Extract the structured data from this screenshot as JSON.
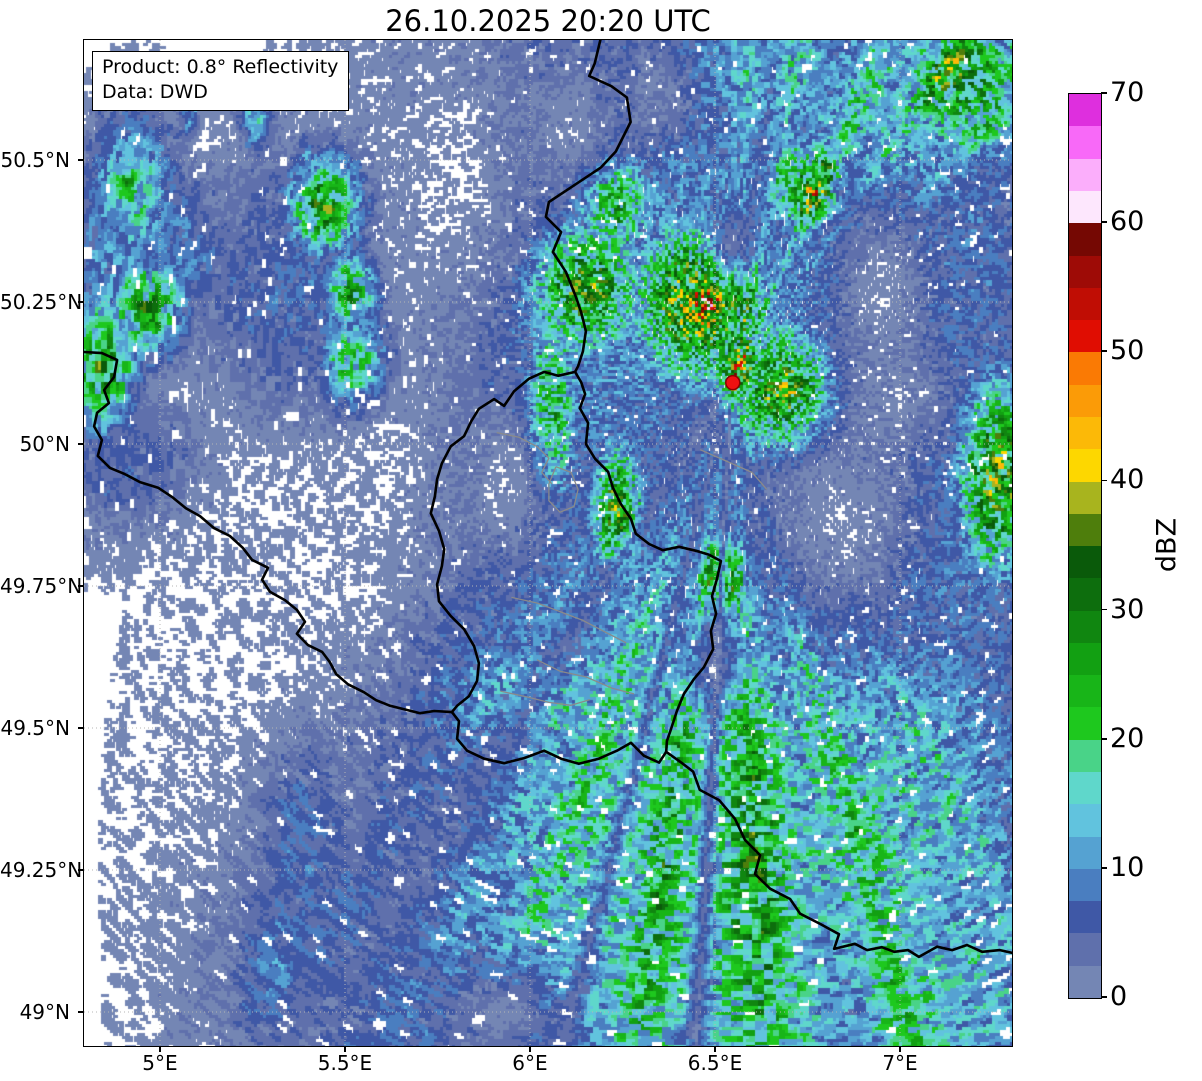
{
  "title": "26.10.2025 20:20 UTC",
  "info_box": {
    "line1": "Product: 0.8° Reflectivity",
    "line2": "Data: DWD"
  },
  "axes": {
    "extent": {
      "lon_min": 4.7946,
      "lon_max": 7.3027,
      "lat_min": 48.9401,
      "lat_max": 50.7113
    },
    "xticks": [
      {
        "value": 5.0,
        "label": "5°E"
      },
      {
        "value": 5.5,
        "label": "5.5°E"
      },
      {
        "value": 6.0,
        "label": "6°E"
      },
      {
        "value": 6.5,
        "label": "6.5°E"
      },
      {
        "value": 7.0,
        "label": "7°E"
      }
    ],
    "yticks": [
      {
        "value": 49.0,
        "label": "49°N"
      },
      {
        "value": 49.25,
        "label": "49.25°N"
      },
      {
        "value": 49.5,
        "label": "49.5°N"
      },
      {
        "value": 49.75,
        "label": "49.75°N"
      },
      {
        "value": 50.0,
        "label": "50°N"
      },
      {
        "value": 50.25,
        "label": "50.25°N"
      },
      {
        "value": 50.5,
        "label": "50.5°N"
      }
    ],
    "grid_color": "#b5b5b5"
  },
  "colorbar": {
    "label": "dBZ",
    "vmin": 0,
    "vmax": 70,
    "step": 2.5,
    "ticks": [
      0,
      10,
      20,
      30,
      40,
      50,
      60,
      70
    ],
    "colors": [
      "#7486b4",
      "#5f70ac",
      "#3f58a6",
      "#4a7ec0",
      "#55a2d2",
      "#61c3de",
      "#5fd7cb",
      "#49d388",
      "#1ec81e",
      "#18b518",
      "#12a012",
      "#108610",
      "#0d6e0d",
      "#0a5a0a",
      "#4e7e0c",
      "#a8b41e",
      "#fdd700",
      "#fcb907",
      "#fb9b07",
      "#fa7a04",
      "#e00d02",
      "#c00d04",
      "#9e0b06",
      "#750803",
      "#fde7fd",
      "#fbaefb",
      "#f869f8",
      "#de2fde"
    ]
  },
  "radar": {
    "site_lon": 6.548,
    "site_lat": 50.108,
    "marker_color": "#ee1111",
    "marker_edge": "#8b0000"
  },
  "chart_data": {
    "type": "heatmap",
    "title": "26.10.2025 20:20 UTC",
    "units": "dBZ",
    "value_range": [
      0,
      70
    ],
    "value_step": 2.5,
    "radar_site": {
      "lon": 6.548,
      "lat": 50.108
    },
    "polar_bins": {
      "range_km": 1.0,
      "azimuth_deg": 1.0
    },
    "precip_blobs": [
      [
        6.35,
        50.48,
        0.4,
        0.3,
        9
      ],
      [
        6.9,
        50.3,
        0.4,
        0.4,
        9
      ],
      [
        6.2,
        50.18,
        0.28,
        0.25,
        9
      ],
      [
        7.05,
        49.85,
        0.3,
        0.28,
        9
      ],
      [
        6.6,
        50.66,
        0.35,
        0.15,
        10
      ],
      [
        6.95,
        50.55,
        0.25,
        0.2,
        12
      ],
      [
        6.15,
        50.28,
        0.11,
        0.09,
        27
      ],
      [
        6.22,
        50.43,
        0.08,
        0.07,
        26
      ],
      [
        6.46,
        50.25,
        0.13,
        0.1,
        31
      ],
      [
        6.48,
        50.245,
        0.055,
        0.045,
        41
      ],
      [
        6.7,
        50.09,
        0.1,
        0.08,
        33
      ],
      [
        6.57,
        50.13,
        0.055,
        0.05,
        29
      ],
      [
        6.76,
        50.45,
        0.07,
        0.06,
        26
      ],
      [
        7.18,
        50.64,
        0.14,
        0.1,
        22
      ],
      [
        7.26,
        49.94,
        0.08,
        0.12,
        30
      ],
      [
        6.06,
        50.06,
        0.05,
        0.12,
        22
      ],
      [
        6.24,
        49.88,
        0.05,
        0.09,
        26
      ],
      [
        6.52,
        49.76,
        0.05,
        0.06,
        26
      ],
      [
        6.0,
        49.82,
        0.33,
        0.28,
        5
      ],
      [
        5.88,
        49.62,
        0.28,
        0.18,
        7
      ],
      [
        6.05,
        49.55,
        0.28,
        0.1,
        13
      ],
      [
        6.45,
        49.28,
        0.55,
        0.5,
        15
      ],
      [
        6.95,
        49.32,
        0.35,
        0.33,
        13
      ],
      [
        5.95,
        49.18,
        0.33,
        0.27,
        10
      ],
      [
        5.6,
        49.05,
        0.28,
        0.22,
        8
      ],
      [
        7.1,
        49.05,
        0.3,
        0.2,
        13
      ],
      [
        4.85,
        50.14,
        0.06,
        0.08,
        25
      ],
      [
        4.88,
        50.3,
        0.1,
        0.14,
        10
      ],
      [
        4.97,
        50.24,
        0.07,
        0.06,
        23
      ],
      [
        4.93,
        50.45,
        0.08,
        0.09,
        15
      ],
      [
        4.92,
        50.465,
        0.025,
        0.025,
        22
      ],
      [
        5.02,
        50.33,
        0.13,
        0.11,
        8
      ],
      [
        5.45,
        50.42,
        0.07,
        0.06,
        25
      ],
      [
        5.52,
        50.27,
        0.05,
        0.05,
        22
      ],
      [
        5.53,
        50.14,
        0.06,
        0.06,
        21
      ],
      [
        5.35,
        50.28,
        0.18,
        0.16,
        6
      ],
      [
        4.92,
        49.96,
        0.14,
        0.09,
        6
      ],
      [
        5.38,
        49.33,
        0.1,
        0.16,
        7
      ],
      [
        5.32,
        49.08,
        0.09,
        0.13,
        8
      ],
      [
        5.26,
        50.57,
        0.03,
        0.04,
        12
      ],
      [
        5.4,
        50.5,
        0.025,
        0.03,
        10
      ],
      [
        5.08,
        50.585,
        0.02,
        0.03,
        12
      ]
    ],
    "dry_holes": [
      [
        6.95,
        50.27,
        0.11,
        0.13,
        0.95
      ],
      [
        6.85,
        49.86,
        0.18,
        0.13,
        0.92
      ],
      [
        6.12,
        50.56,
        0.1,
        0.11,
        0.85
      ],
      [
        5.93,
        49.93,
        0.08,
        0.09,
        0.85
      ],
      [
        5.92,
        49.0,
        0.11,
        0.06,
        0.9
      ],
      [
        6.55,
        50.35,
        0.05,
        0.04,
        0.8
      ],
      [
        6.5,
        49.62,
        0.07,
        0.05,
        0.7
      ],
      [
        5.45,
        49.75,
        0.22,
        0.13,
        0.93
      ],
      [
        5.1,
        49.62,
        0.25,
        0.18,
        0.95
      ],
      [
        5.62,
        49.97,
        0.09,
        0.1,
        0.8
      ],
      [
        5.8,
        50.48,
        0.13,
        0.18,
        0.92
      ],
      [
        6.35,
        50.62,
        0.08,
        0.08,
        0.8
      ],
      [
        7.0,
        50.08,
        0.1,
        0.07,
        0.75
      ]
    ],
    "ray_streaks": [
      [
        177,
        5,
        1.7
      ],
      [
        188,
        3,
        1.5
      ],
      [
        165,
        4,
        1.5
      ],
      [
        200,
        3,
        1.35
      ],
      [
        152,
        3,
        1.25
      ],
      [
        12,
        4,
        1.5
      ],
      [
        24,
        4,
        1.6
      ],
      [
        34,
        3,
        1.4
      ],
      [
        3,
        3,
        1.3
      ],
      [
        45,
        3,
        1.2
      ]
    ],
    "ray_gaps": [
      [
        183,
        1.5,
        0.25
      ],
      [
        194,
        1.5,
        0.4
      ],
      [
        212,
        5,
        0.5
      ]
    ]
  },
  "map_layers": {
    "country_border_color": "#000000",
    "district_border_color": "#8a8a8a",
    "country_borders": [
      [
        [
          6.19,
          50.711
        ],
        [
          6.175,
          50.67
        ],
        [
          6.16,
          50.648
        ],
        [
          6.22,
          50.63
        ],
        [
          6.262,
          50.61
        ],
        [
          6.272,
          50.567
        ],
        [
          6.232,
          50.515
        ],
        [
          6.192,
          50.487
        ],
        [
          6.111,
          50.452
        ],
        [
          6.051,
          50.426
        ],
        [
          6.043,
          50.4
        ],
        [
          6.084,
          50.373
        ],
        [
          6.062,
          50.338
        ],
        [
          6.097,
          50.303
        ],
        [
          6.124,
          50.259
        ],
        [
          6.138,
          50.232
        ],
        [
          6.151,
          50.199
        ],
        [
          6.143,
          50.163
        ],
        [
          6.13,
          50.137
        ],
        [
          6.122,
          50.127
        ]
      ],
      [
        [
          6.122,
          50.127
        ],
        [
          6.076,
          50.12
        ],
        [
          6.038,
          50.127
        ],
        [
          5.997,
          50.115
        ],
        [
          5.957,
          50.093
        ],
        [
          5.93,
          50.067
        ],
        [
          5.903,
          50.079
        ],
        [
          5.862,
          50.062
        ],
        [
          5.841,
          50.04
        ],
        [
          5.822,
          50.014
        ],
        [
          5.786,
          49.996
        ],
        [
          5.762,
          49.966
        ],
        [
          5.749,
          49.938
        ],
        [
          5.743,
          49.908
        ],
        [
          5.732,
          49.878
        ],
        [
          5.754,
          49.847
        ],
        [
          5.768,
          49.815
        ],
        [
          5.762,
          49.785
        ],
        [
          5.749,
          49.753
        ],
        [
          5.754,
          49.723
        ],
        [
          5.786,
          49.697
        ],
        [
          5.822,
          49.674
        ],
        [
          5.849,
          49.644
        ],
        [
          5.862,
          49.614
        ],
        [
          5.857,
          49.583
        ],
        [
          5.835,
          49.556
        ],
        [
          5.803,
          49.539
        ],
        [
          5.789,
          49.528
        ]
      ],
      [
        [
          4.795,
          50.162
        ],
        [
          4.843,
          50.16
        ],
        [
          4.884,
          50.148
        ],
        [
          4.876,
          50.118
        ],
        [
          4.849,
          50.095
        ],
        [
          4.862,
          50.072
        ],
        [
          4.83,
          50.055
        ],
        [
          4.822,
          50.031
        ],
        [
          4.843,
          50.007
        ],
        [
          4.832,
          49.979
        ],
        [
          4.865,
          49.958
        ],
        [
          4.905,
          49.947
        ],
        [
          4.946,
          49.933
        ],
        [
          4.995,
          49.923
        ],
        [
          5.032,
          49.907
        ],
        [
          5.07,
          49.887
        ],
        [
          5.108,
          49.873
        ],
        [
          5.146,
          49.852
        ],
        [
          5.189,
          49.838
        ],
        [
          5.224,
          49.817
        ],
        [
          5.249,
          49.796
        ],
        [
          5.292,
          49.782
        ],
        [
          5.276,
          49.761
        ],
        [
          5.297,
          49.74
        ],
        [
          5.338,
          49.725
        ],
        [
          5.37,
          49.708
        ],
        [
          5.392,
          49.687
        ],
        [
          5.37,
          49.666
        ],
        [
          5.4,
          49.646
        ],
        [
          5.438,
          49.634
        ],
        [
          5.459,
          49.616
        ],
        [
          5.476,
          49.595
        ],
        [
          5.508,
          49.577
        ],
        [
          5.551,
          49.563
        ],
        [
          5.584,
          49.549
        ],
        [
          5.622,
          49.539
        ],
        [
          5.703,
          49.526
        ],
        [
          5.741,
          49.53
        ],
        [
          5.789,
          49.528
        ]
      ],
      [
        [
          5.789,
          49.528
        ],
        [
          5.808,
          49.512
        ],
        [
          5.803,
          49.481
        ],
        [
          5.83,
          49.46
        ],
        [
          5.876,
          49.446
        ],
        [
          5.93,
          49.438
        ],
        [
          5.984,
          49.447
        ],
        [
          6.038,
          49.46
        ],
        [
          6.084,
          49.446
        ],
        [
          6.132,
          49.437
        ],
        [
          6.186,
          49.446
        ],
        [
          6.235,
          49.46
        ],
        [
          6.273,
          49.474
        ],
        [
          6.308,
          49.451
        ],
        [
          6.349,
          49.439
        ],
        [
          6.368,
          49.458
        ]
      ],
      [
        [
          6.122,
          50.127
        ],
        [
          6.138,
          50.109
        ],
        [
          6.149,
          50.088
        ],
        [
          6.135,
          50.063
        ],
        [
          6.157,
          50.037
        ],
        [
          6.151,
          50.0
        ],
        [
          6.176,
          49.974
        ],
        [
          6.211,
          49.951
        ],
        [
          6.224,
          49.923
        ],
        [
          6.246,
          49.894
        ],
        [
          6.273,
          49.868
        ],
        [
          6.286,
          49.842
        ],
        [
          6.322,
          49.824
        ],
        [
          6.359,
          49.813
        ],
        [
          6.403,
          49.819
        ],
        [
          6.449,
          49.812
        ],
        [
          6.484,
          49.805
        ],
        [
          6.516,
          49.794
        ],
        [
          6.505,
          49.762
        ],
        [
          6.492,
          49.732
        ],
        [
          6.503,
          49.701
        ],
        [
          6.489,
          49.671
        ],
        [
          6.495,
          49.639
        ],
        [
          6.47,
          49.607
        ],
        [
          6.443,
          49.586
        ],
        [
          6.416,
          49.56
        ],
        [
          6.397,
          49.53
        ],
        [
          6.381,
          49.498
        ],
        [
          6.37,
          49.477
        ],
        [
          6.368,
          49.458
        ]
      ],
      [
        [
          6.368,
          49.458
        ],
        [
          6.411,
          49.438
        ],
        [
          6.441,
          49.423
        ],
        [
          6.459,
          49.391
        ],
        [
          6.511,
          49.373
        ],
        [
          6.554,
          49.34
        ],
        [
          6.581,
          49.303
        ],
        [
          6.622,
          49.276
        ],
        [
          6.608,
          49.243
        ],
        [
          6.649,
          49.217
        ],
        [
          6.703,
          49.199
        ],
        [
          6.73,
          49.173
        ],
        [
          6.784,
          49.155
        ],
        [
          6.835,
          49.137
        ],
        [
          6.822,
          49.111
        ],
        [
          6.878,
          49.12
        ],
        [
          6.911,
          49.109
        ],
        [
          6.951,
          49.114
        ],
        [
          6.984,
          49.106
        ],
        [
          7.022,
          49.109
        ],
        [
          7.051,
          49.097
        ],
        [
          7.1,
          49.115
        ],
        [
          7.141,
          49.109
        ],
        [
          7.181,
          49.118
        ],
        [
          7.222,
          49.106
        ],
        [
          7.27,
          49.109
        ],
        [
          7.303,
          49.104
        ]
      ]
    ],
    "district_borders": [
      [
        [
          5.91,
          50.02
        ],
        [
          5.97,
          50.012
        ],
        [
          6.02,
          49.995
        ],
        [
          6.051,
          49.975
        ],
        [
          6.032,
          49.95
        ],
        [
          6.059,
          49.93
        ]
      ],
      [
        [
          6.07,
          49.96
        ],
        [
          6.111,
          49.95
        ],
        [
          6.13,
          49.92
        ],
        [
          6.119,
          49.89
        ],
        [
          6.081,
          49.88
        ],
        [
          6.051,
          49.9
        ],
        [
          6.051,
          49.93
        ],
        [
          6.07,
          49.96
        ]
      ],
      [
        [
          5.95,
          49.73
        ],
        [
          6.019,
          49.72
        ],
        [
          6.081,
          49.705
        ],
        [
          6.141,
          49.69
        ],
        [
          6.2,
          49.67
        ],
        [
          6.26,
          49.65
        ]
      ],
      [
        [
          6.019,
          49.62
        ],
        [
          6.081,
          49.6
        ],
        [
          6.151,
          49.59
        ],
        [
          6.222,
          49.57
        ],
        [
          6.281,
          49.56
        ]
      ],
      [
        [
          6.46,
          49.99
        ],
        [
          6.53,
          49.97
        ],
        [
          6.6,
          49.95
        ],
        [
          6.64,
          49.92
        ]
      ],
      [
        [
          5.92,
          49.565
        ],
        [
          5.99,
          49.555
        ],
        [
          6.051,
          49.545
        ],
        [
          6.111,
          49.54
        ],
        [
          6.162,
          49.55
        ]
      ]
    ]
  }
}
